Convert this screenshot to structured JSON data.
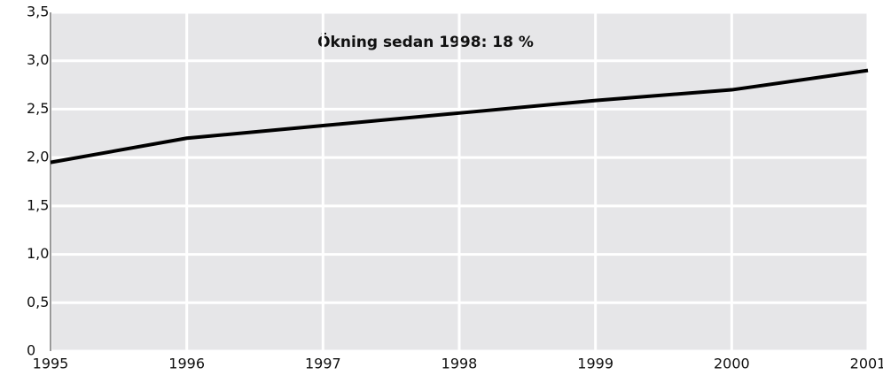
{
  "chart_data": {
    "type": "line",
    "annotation": "Ökning sedan 1998: 18 %",
    "x": [
      1995,
      1996,
      1997,
      1998,
      1999,
      2000,
      2001
    ],
    "series": [
      {
        "color": "#000000",
        "values": [
          1.95,
          2.2,
          2.33,
          2.46,
          2.59,
          2.7,
          2.9
        ]
      }
    ],
    "xlim": [
      1995,
      2001
    ],
    "xticks": [
      1995,
      1996,
      1997,
      1998,
      1999,
      2000,
      2001
    ],
    "ylim": [
      0,
      3.5
    ],
    "yticks": [
      0,
      {
        "value": 0.5,
        "label": "0,5"
      },
      {
        "value": 1,
        "label": "1,0"
      },
      {
        "value": 1.5,
        "label": "1,5"
      },
      {
        "value": 2,
        "label": "2,0"
      },
      {
        "value": 2.5,
        "label": "2,5"
      },
      {
        "value": 3,
        "label": "3,0"
      },
      {
        "value": 3.5,
        "label": "3,5"
      }
    ],
    "grid": true,
    "background": "#e6e6e8"
  }
}
